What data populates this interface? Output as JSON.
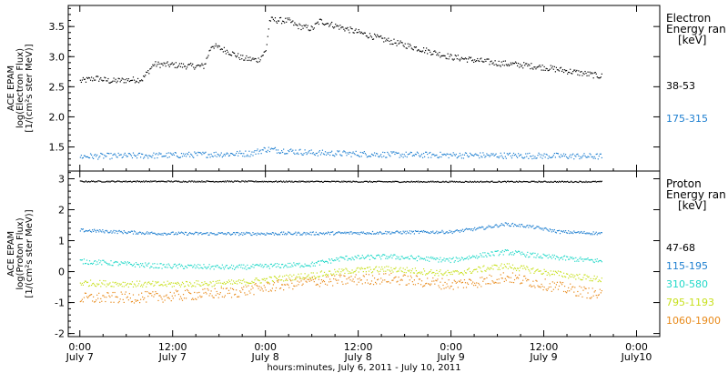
{
  "chart_data": [
    {
      "type": "scatter",
      "panel": "electron",
      "ylabel_lines": [
        "ACE EPAM",
        "log(Electron Flux)",
        "[1/(cm²s ster MeV)]"
      ],
      "ylim": [
        1.1,
        3.85
      ],
      "yticks": [
        1.5,
        2.0,
        2.5,
        3.0,
        3.5
      ],
      "ytick_labels": [
        "1.5",
        "2.0",
        "2.5",
        "3.0",
        "3.5"
      ],
      "legend_title_lines": [
        "Electron",
        "Energy ran",
        "[keV]"
      ],
      "series": [
        {
          "name": "38-53",
          "color": "#000000",
          "x_hours": [
            0,
            2,
            4,
            6,
            8,
            9.5,
            12,
            14,
            16,
            17,
            19,
            21,
            23,
            24,
            24.5,
            27,
            28,
            30,
            31,
            33,
            36,
            39,
            42,
            45,
            48,
            51,
            54,
            57,
            60,
            64,
            67.5
          ],
          "values": [
            2.6,
            2.65,
            2.6,
            2.62,
            2.63,
            2.88,
            2.87,
            2.85,
            2.85,
            3.2,
            3.1,
            2.98,
            2.95,
            3.1,
            3.62,
            3.6,
            3.52,
            3.47,
            3.6,
            3.52,
            3.41,
            3.3,
            3.2,
            3.1,
            3.0,
            2.95,
            2.9,
            2.87,
            2.83,
            2.75,
            2.68
          ],
          "spread": 0.05
        },
        {
          "name": "175-315",
          "color": "#1e7fd0",
          "x_hours": [
            0,
            12,
            22,
            24,
            30,
            40,
            50,
            60,
            67.5
          ],
          "values": [
            1.35,
            1.37,
            1.4,
            1.47,
            1.41,
            1.38,
            1.37,
            1.36,
            1.35
          ],
          "spread": 0.05
        }
      ]
    },
    {
      "type": "scatter",
      "panel": "proton",
      "ylabel_lines": [
        "ACE EPAM",
        "log(Proton Flux)",
        "[1/(cm²s ster MeV)]"
      ],
      "ylim": [
        -2.1,
        3.25
      ],
      "yticks": [
        -2,
        -1,
        0,
        1,
        2,
        3
      ],
      "ytick_labels": [
        "-2",
        "-1",
        "0",
        "1",
        "2",
        "3"
      ],
      "legend_title_lines": [
        "Proton",
        "Energy ran",
        "[keV]"
      ],
      "series": [
        {
          "name": "47-68",
          "color": "#000000",
          "x_hours": [
            0,
            20,
            40,
            67.5
          ],
          "values": [
            2.93,
            2.93,
            2.92,
            2.92
          ],
          "spread": 0.02
        },
        {
          "name": "115-195",
          "color": "#1e7fd0",
          "x_hours": [
            0,
            10,
            20,
            30,
            40,
            48,
            52,
            55,
            58,
            62,
            67.5
          ],
          "values": [
            1.35,
            1.25,
            1.24,
            1.25,
            1.28,
            1.3,
            1.42,
            1.55,
            1.48,
            1.3,
            1.25
          ],
          "spread": 0.05
        },
        {
          "name": "310-580",
          "color": "#20d8c8",
          "x_hours": [
            0,
            10,
            20,
            30,
            34,
            40,
            48,
            52,
            55,
            60,
            67.5
          ],
          "values": [
            0.35,
            0.2,
            0.15,
            0.25,
            0.45,
            0.5,
            0.38,
            0.55,
            0.65,
            0.5,
            0.35
          ],
          "spread": 0.08
        },
        {
          "name": "795-1193",
          "color": "#c8e01e",
          "x_hours": [
            0,
            10,
            20,
            30,
            35,
            40,
            48,
            52,
            55,
            60,
            67.5
          ],
          "values": [
            -0.35,
            -0.4,
            -0.35,
            -0.1,
            0.05,
            0.1,
            -0.05,
            0.1,
            0.2,
            0.0,
            -0.25
          ],
          "spread": 0.1
        },
        {
          "name": "1060-1900",
          "color": "#e88a1a",
          "x_hours": [
            0,
            10,
            20,
            25,
            30,
            35,
            40,
            48,
            52,
            55,
            60,
            67.5
          ],
          "values": [
            -0.85,
            -0.8,
            -0.65,
            -0.45,
            -0.3,
            -0.25,
            -0.2,
            -0.4,
            -0.3,
            -0.15,
            -0.4,
            -0.75
          ],
          "spread": 0.18
        }
      ]
    }
  ],
  "x_axis": {
    "xlim_hours": [
      -1.5,
      75
    ],
    "tick_hours": [
      0,
      12,
      24,
      36,
      48,
      60,
      72
    ],
    "tick_time_labels": [
      "0:00",
      "12:00",
      "0:00",
      "12:00",
      "0:00",
      "12:00",
      "0:00"
    ],
    "tick_date_labels": [
      "July 7",
      "July 7",
      "July 8",
      "July 8",
      "July 9",
      "July 9",
      "July10"
    ],
    "title": "hours:minutes, July  6, 2011 - July 10, 2011"
  }
}
